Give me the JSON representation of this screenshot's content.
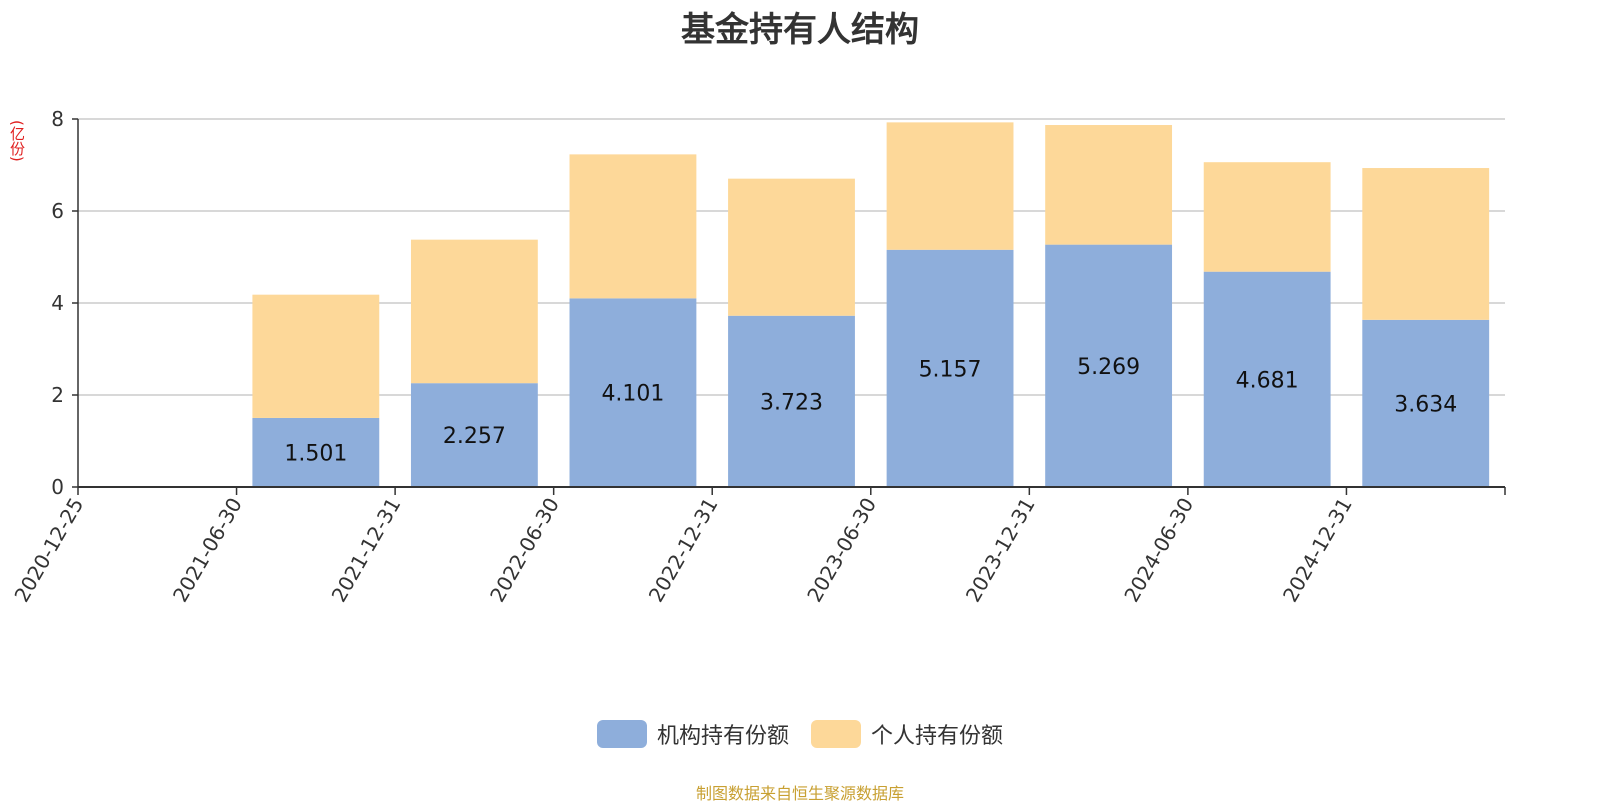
{
  "chart_data": {
    "type": "bar",
    "stacked": true,
    "title": "基金持有人结构",
    "ylabel": "(亿份)",
    "xlabel": "",
    "ylim": [
      0,
      8
    ],
    "yticks": [
      0,
      2,
      4,
      6,
      8
    ],
    "grid": true,
    "legend_position": "bottom-center",
    "categories": [
      "2020-12-25",
      "2021-06-30",
      "2021-12-31",
      "2022-06-30",
      "2022-12-31",
      "2023-06-30",
      "2023-12-31",
      "2024-06-30",
      "2024-12-31"
    ],
    "series": [
      {
        "name": "机构持有份额",
        "color": "#8eaedb",
        "values": [
          0,
          1.501,
          2.257,
          4.101,
          3.723,
          5.157,
          5.269,
          4.681,
          3.634
        ],
        "labels": [
          "",
          "1.501",
          "2.257",
          "4.101",
          "3.723",
          "5.157",
          "5.269",
          "4.681",
          "3.634"
        ]
      },
      {
        "name": "个人持有份额",
        "color": "#fdd899",
        "values": [
          0,
          2.68,
          3.12,
          3.13,
          2.98,
          2.77,
          2.6,
          2.38,
          3.3
        ]
      }
    ]
  },
  "footer": {
    "source": "制图数据来自恒生聚源数据库"
  }
}
